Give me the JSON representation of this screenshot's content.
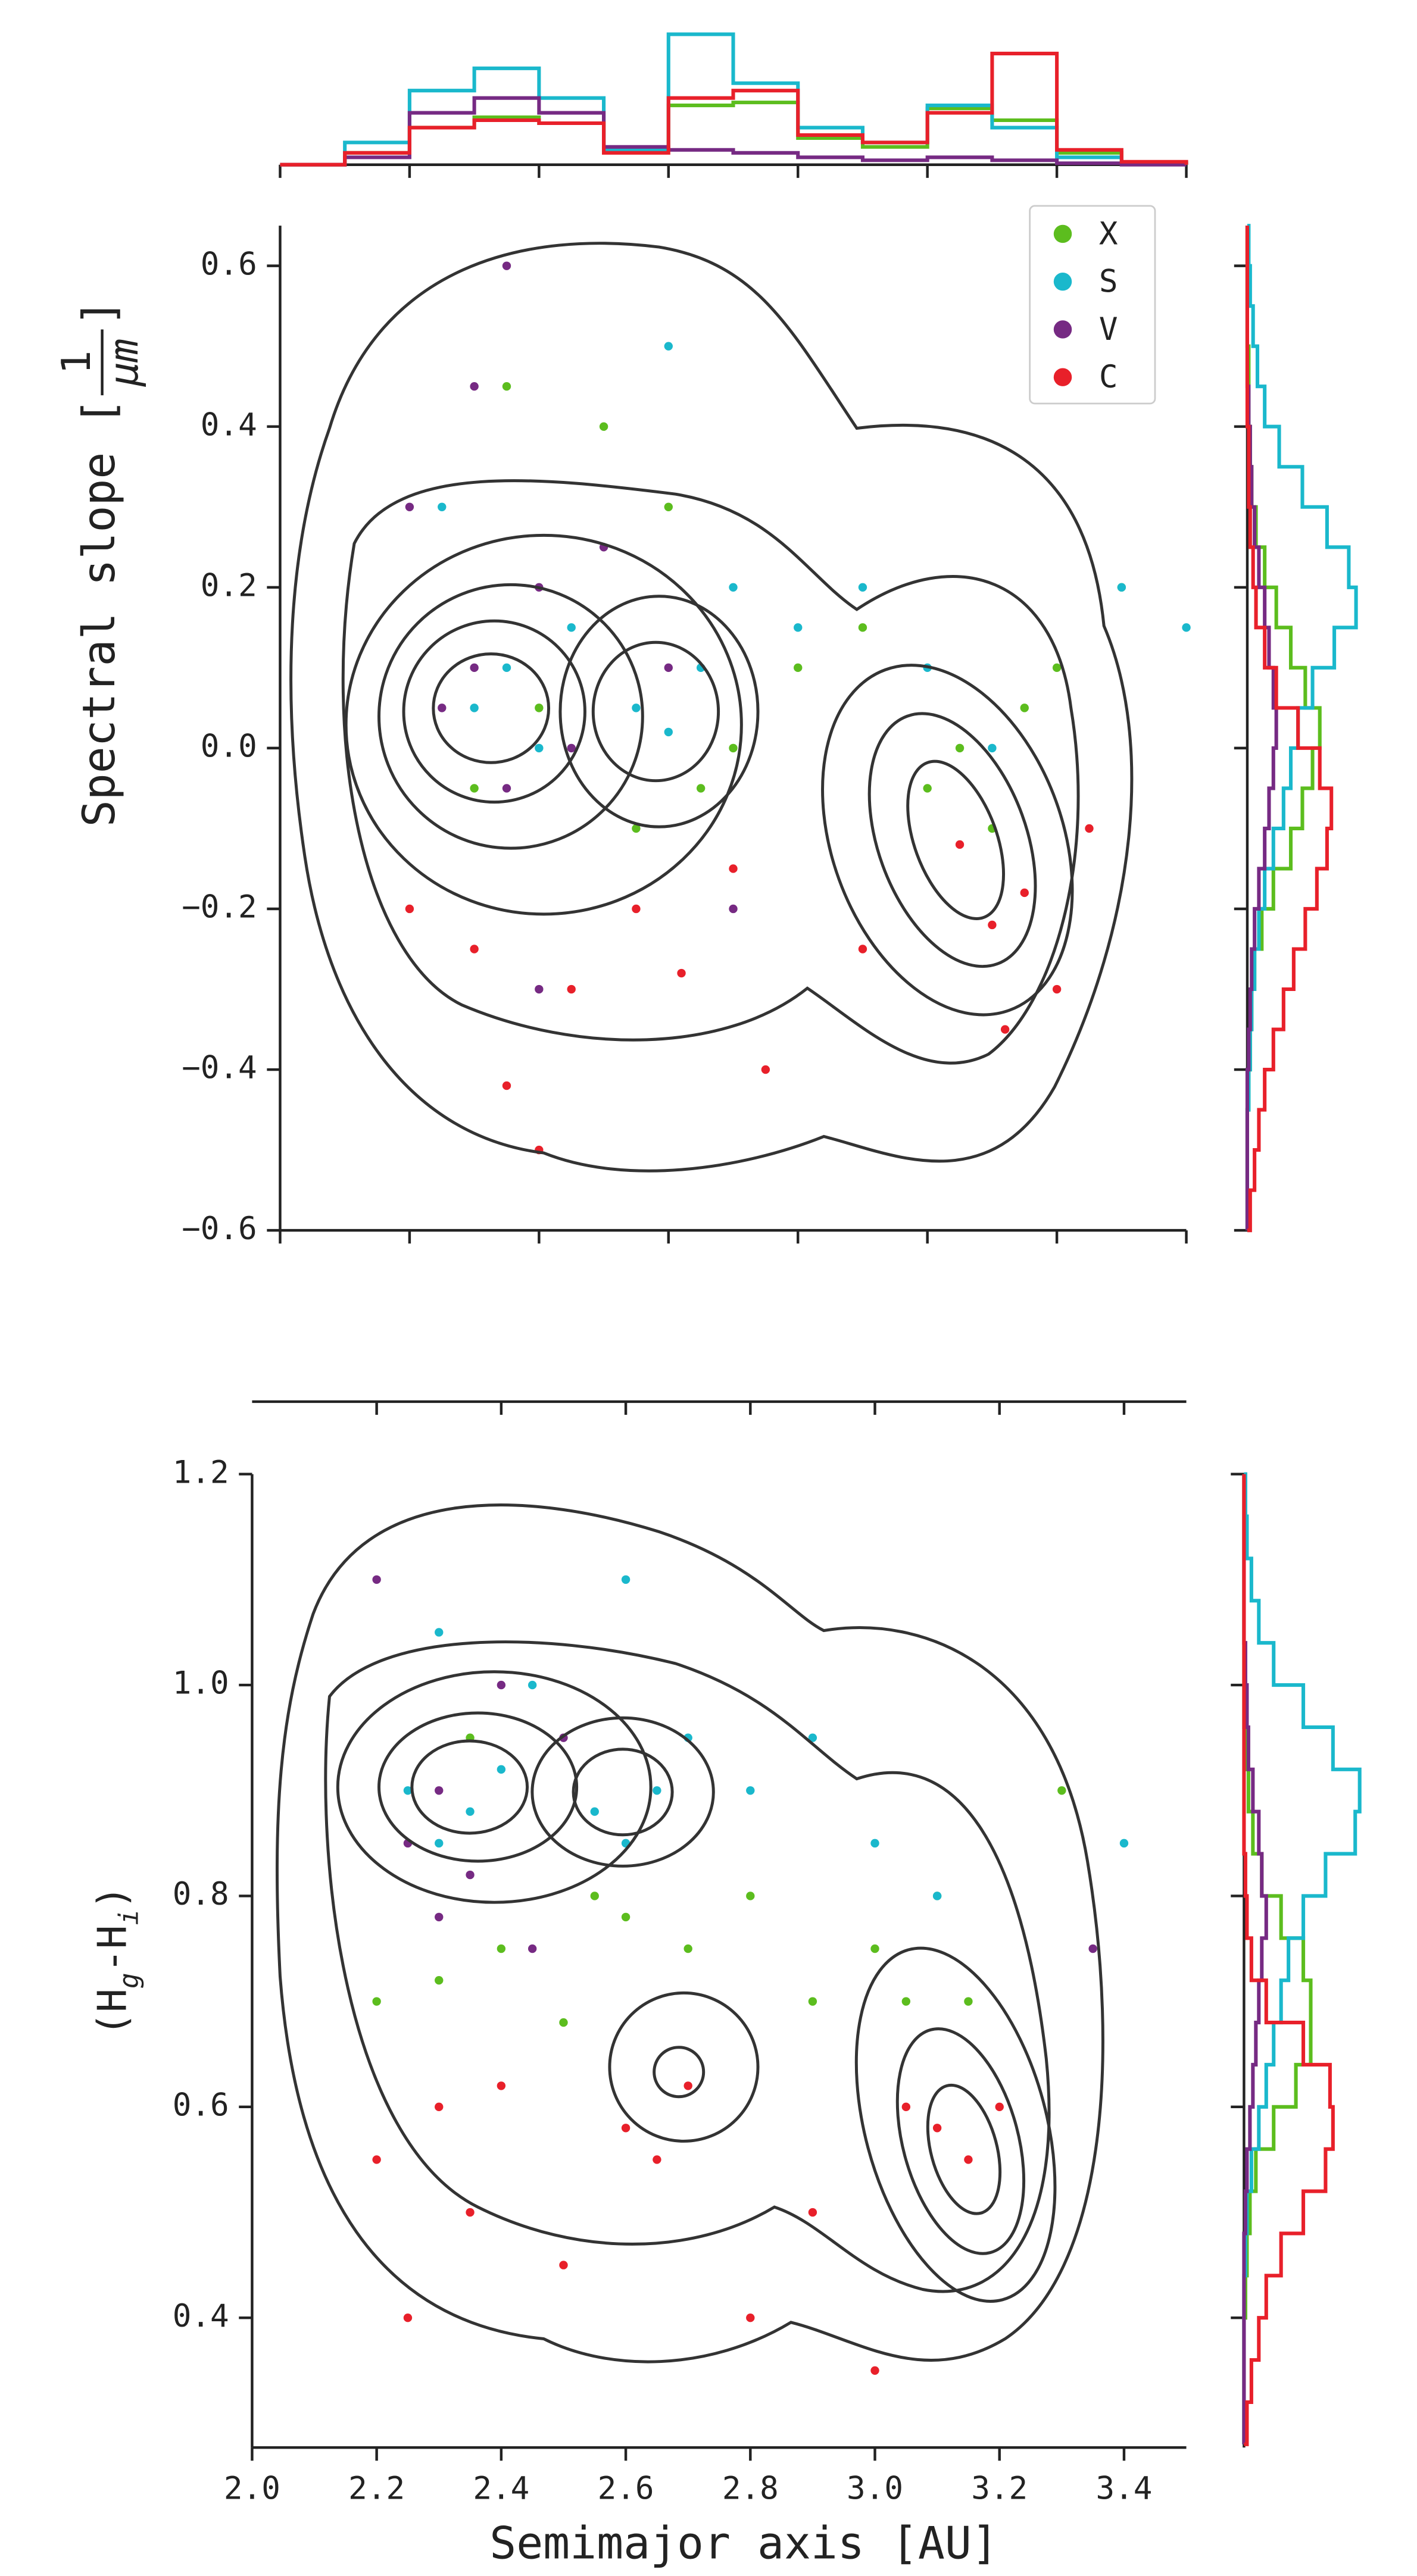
{
  "chart_data": [
    {
      "type": "scatter",
      "ylabel_parts": [
        "Spectral slope [",
        "1",
        "μm",
        "]"
      ],
      "xlim": [
        2.0,
        3.4
      ],
      "xticks": [
        2.0,
        2.2,
        2.4,
        2.6,
        2.8,
        3.0,
        3.2,
        3.4
      ],
      "ylim": [
        -0.6,
        0.65
      ],
      "yticks": [
        {
          "value": -0.6,
          "label": "−0.6"
        },
        {
          "value": -0.4,
          "label": "−0.4"
        },
        {
          "value": -0.2,
          "label": "−0.2"
        },
        {
          "value": 0.0,
          "label": "0.0"
        },
        0.2,
        0.4,
        0.6
      ],
      "legend": "upper right",
      "hist_lim": [
        0,
        100
      ],
      "hist_x_bins": [
        2.0,
        2.1,
        2.2,
        2.3,
        2.4,
        2.5,
        2.6,
        2.7,
        2.8,
        2.9,
        3.0,
        3.1,
        3.2,
        3.3,
        3.4
      ],
      "hist_y_bins": [
        -0.6,
        -0.55,
        -0.5,
        -0.45,
        -0.4,
        -0.35,
        -0.3,
        -0.25,
        -0.2,
        -0.15,
        -0.1,
        -0.05,
        0.0,
        0.05,
        0.1,
        0.15,
        0.2,
        0.25,
        0.3,
        0.35,
        0.4,
        0.45,
        0.5,
        0.55,
        0.6,
        0.65
      ],
      "series": [
        {
          "name": "X",
          "color": "#5cbd1e",
          "x": [
            2.3,
            2.4,
            2.55,
            2.65,
            2.7,
            2.8,
            2.9,
            3.0,
            3.05,
            3.1,
            3.15,
            3.2,
            2.5,
            2.35,
            3.3,
            2.6
          ],
          "y": [
            -0.05,
            0.05,
            -0.1,
            -0.05,
            0.0,
            0.1,
            0.15,
            -0.05,
            0.0,
            -0.1,
            0.05,
            0.1,
            0.4,
            0.45,
            0.2,
            0.3
          ],
          "hist_x": [
            0,
            8,
            25,
            32,
            28,
            10,
            40,
            42,
            18,
            12,
            38,
            30,
            8,
            1
          ],
          "hist_y": [
            0,
            0,
            0,
            1,
            2,
            3,
            5,
            10,
            18,
            30,
            38,
            45,
            50,
            40,
            30,
            20,
            12,
            6,
            3,
            2,
            1,
            1,
            0,
            0,
            0
          ]
        },
        {
          "name": "S",
          "color": "#1ab8cc",
          "x": [
            2.3,
            2.35,
            2.4,
            2.45,
            2.55,
            2.6,
            2.65,
            2.7,
            2.8,
            2.9,
            3.0,
            3.1,
            2.25,
            2.6,
            3.3,
            3.4
          ],
          "y": [
            0.05,
            0.1,
            0.0,
            0.15,
            0.05,
            0.02,
            0.1,
            0.2,
            0.15,
            0.2,
            0.1,
            0.0,
            0.3,
            0.5,
            0.2,
            0.15
          ],
          "hist_x": [
            0,
            15,
            50,
            65,
            45,
            10,
            88,
            55,
            25,
            15,
            40,
            25,
            5,
            1
          ],
          "hist_y": [
            0,
            0,
            0,
            1,
            2,
            3,
            5,
            8,
            12,
            18,
            25,
            30,
            35,
            45,
            60,
            75,
            70,
            55,
            38,
            22,
            12,
            7,
            4,
            2,
            1
          ]
        },
        {
          "name": "V",
          "color": "#762a83",
          "x": [
            2.25,
            2.3,
            2.35,
            2.4,
            2.45,
            2.3,
            2.2,
            2.6,
            2.7,
            2.4,
            2.5,
            2.35
          ],
          "y": [
            0.05,
            0.1,
            -0.05,
            0.2,
            0.0,
            0.45,
            0.3,
            0.1,
            -0.2,
            -0.3,
            0.25,
            0.6
          ],
          "hist_x": [
            0,
            5,
            35,
            45,
            35,
            12,
            10,
            8,
            5,
            3,
            5,
            3,
            1,
            0
          ],
          "hist_y": [
            0,
            0,
            0,
            0,
            1,
            2,
            3,
            5,
            8,
            12,
            15,
            18,
            20,
            18,
            15,
            12,
            8,
            5,
            3,
            2,
            1,
            0,
            0,
            0,
            0
          ]
        },
        {
          "name": "C",
          "color": "#e8202a",
          "x": [
            2.3,
            2.35,
            2.45,
            2.55,
            2.62,
            2.7,
            2.75,
            3.05,
            3.1,
            3.15,
            3.2,
            3.12,
            2.4,
            2.9,
            3.25,
            2.2
          ],
          "y": [
            -0.25,
            -0.42,
            -0.3,
            -0.2,
            -0.28,
            -0.15,
            -0.4,
            -0.12,
            -0.22,
            -0.18,
            -0.3,
            -0.35,
            -0.5,
            -0.25,
            -0.1,
            -0.2
          ],
          "hist_x": [
            0,
            8,
            25,
            30,
            28,
            8,
            45,
            50,
            20,
            15,
            35,
            75,
            10,
            2
          ],
          "hist_y": [
            2,
            5,
            8,
            12,
            18,
            25,
            32,
            40,
            48,
            55,
            58,
            50,
            35,
            20,
            12,
            6,
            4,
            2,
            1,
            1,
            0,
            0,
            0,
            0,
            0
          ]
        }
      ]
    },
    {
      "type": "scatter",
      "ylabel_parts": [
        "(H",
        "g",
        "-H",
        "i",
        ")"
      ],
      "xlabel": "Semimajor axis [AU]",
      "xlim": [
        2.0,
        3.5
      ],
      "xticks": [
        {
          "value": 2.0,
          "label": "2.0"
        },
        2.2,
        2.4,
        2.6,
        2.8,
        {
          "value": 3.0,
          "label": "3.0"
        },
        3.2,
        3.4
      ],
      "ylim": [
        0.277,
        1.2
      ],
      "yticks": [
        0.4,
        0.6,
        0.8,
        {
          "value": 1.0,
          "label": "1.0"
        },
        1.2
      ],
      "hist_lim": [
        0,
        100
      ],
      "hist_y_bins": [
        0.28,
        0.32,
        0.36,
        0.4,
        0.44,
        0.48,
        0.52,
        0.56,
        0.6,
        0.64,
        0.68,
        0.72,
        0.76,
        0.8,
        0.84,
        0.88,
        0.92,
        0.96,
        1.0,
        1.04,
        1.08,
        1.12,
        1.16,
        1.2
      ],
      "series": [
        {
          "name": "X",
          "color": "#5cbd1e",
          "x": [
            2.3,
            2.4,
            2.55,
            2.6,
            2.7,
            2.8,
            2.9,
            3.0,
            3.05,
            3.1,
            3.15,
            2.5,
            2.35,
            2.2,
            3.3
          ],
          "y": [
            0.72,
            0.75,
            0.8,
            0.78,
            0.75,
            0.8,
            0.7,
            0.75,
            0.7,
            0.8,
            0.7,
            0.68,
            0.95,
            0.7,
            0.9
          ],
          "hist_y": [
            0,
            0,
            0,
            1,
            2,
            4,
            8,
            20,
            35,
            45,
            45,
            40,
            25,
            12,
            6,
            3,
            1,
            0,
            0,
            0,
            0,
            0,
            0
          ]
        },
        {
          "name": "S",
          "color": "#1ab8cc",
          "x": [
            2.25,
            2.3,
            2.35,
            2.4,
            2.55,
            2.6,
            2.65,
            2.7,
            2.8,
            2.9,
            3.0,
            3.1,
            2.3,
            2.6,
            3.4,
            2.45
          ],
          "y": [
            0.9,
            0.85,
            0.88,
            0.92,
            0.88,
            0.85,
            0.9,
            0.95,
            0.9,
            0.95,
            0.85,
            0.8,
            1.05,
            1.1,
            0.85,
            1.0
          ],
          "hist_y": [
            0,
            0,
            0,
            0,
            1,
            2,
            5,
            10,
            15,
            20,
            25,
            30,
            40,
            55,
            75,
            78,
            60,
            40,
            20,
            10,
            5,
            2,
            1
          ]
        },
        {
          "name": "V",
          "color": "#762a83",
          "x": [
            2.25,
            2.3,
            2.35,
            2.4,
            2.2,
            2.5,
            2.45,
            2.3,
            3.35
          ],
          "y": [
            0.85,
            0.9,
            0.82,
            1.0,
            1.1,
            0.95,
            0.75,
            0.78,
            0.75
          ],
          "hist_y": [
            0,
            0,
            0,
            0,
            0,
            1,
            2,
            4,
            6,
            8,
            10,
            12,
            15,
            12,
            10,
            6,
            3,
            2,
            1,
            0,
            0,
            0,
            0
          ]
        },
        {
          "name": "C",
          "color": "#e8202a",
          "x": [
            2.2,
            2.3,
            2.35,
            2.4,
            2.5,
            2.6,
            2.65,
            2.7,
            3.05,
            3.1,
            3.15,
            3.2,
            2.8,
            2.9,
            3.0,
            2.25
          ],
          "y": [
            0.55,
            0.6,
            0.5,
            0.62,
            0.45,
            0.58,
            0.55,
            0.62,
            0.6,
            0.58,
            0.55,
            0.6,
            0.4,
            0.5,
            0.35,
            0.4
          ],
          "hist_y": [
            2,
            5,
            10,
            15,
            25,
            40,
            55,
            60,
            58,
            40,
            15,
            5,
            2,
            1,
            0,
            0,
            0,
            0,
            0,
            0,
            0,
            0,
            0
          ]
        }
      ]
    }
  ]
}
